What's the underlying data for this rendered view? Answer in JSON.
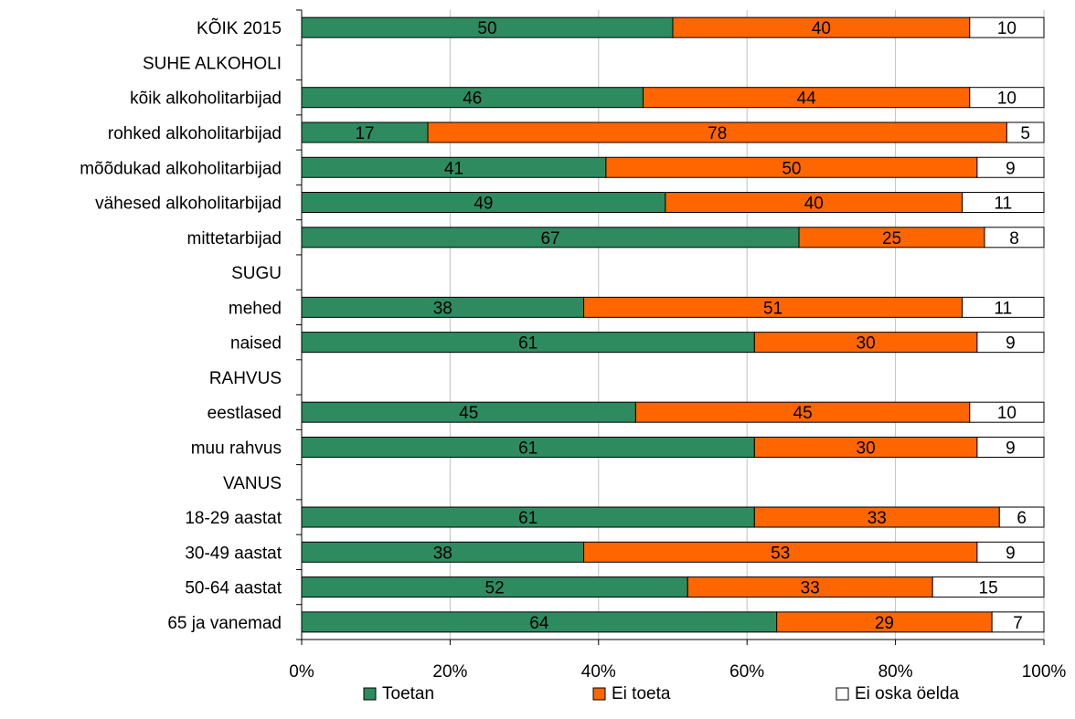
{
  "chart_data": {
    "type": "bar",
    "orientation": "horizontal",
    "stacked": "percent",
    "title": "",
    "xlabel": "",
    "ylabel": "",
    "xlim": [
      0,
      100
    ],
    "grid": true,
    "legend_position": "bottom",
    "x_ticks": [
      "0%",
      "20%",
      "40%",
      "60%",
      "80%",
      "100%"
    ],
    "categories": [
      "KÕIK 2015",
      "SUHE ALKOHOLI",
      "kõik alkoholitarbijad",
      "rohked alkoholitarbijad",
      "mõõdukad alkoholitarbijad",
      "vähesed alkoholitarbijad",
      "mittetarbijad",
      "SUGU",
      "mehed",
      "naised",
      "RAHVUS",
      "eestlased",
      "muu rahvus",
      "VANUS",
      "18-29 aastat",
      "30-49 aastat",
      "50-64 aastat",
      "65 ja vanemad"
    ],
    "series": [
      {
        "name": "Toetan",
        "color": "#2e8b60",
        "values": [
          50,
          null,
          46,
          17,
          41,
          49,
          67,
          null,
          38,
          61,
          null,
          45,
          61,
          null,
          61,
          38,
          52,
          64
        ]
      },
      {
        "name": "Ei toeta",
        "color": "#ff6600",
        "values": [
          40,
          null,
          44,
          78,
          50,
          40,
          25,
          null,
          51,
          30,
          null,
          45,
          30,
          null,
          33,
          53,
          33,
          29
        ]
      },
      {
        "name": "Ei oska öelda",
        "color": "#ffffff",
        "values": [
          10,
          null,
          10,
          5,
          9,
          11,
          8,
          null,
          11,
          9,
          null,
          10,
          9,
          null,
          6,
          9,
          15,
          7
        ]
      }
    ]
  }
}
